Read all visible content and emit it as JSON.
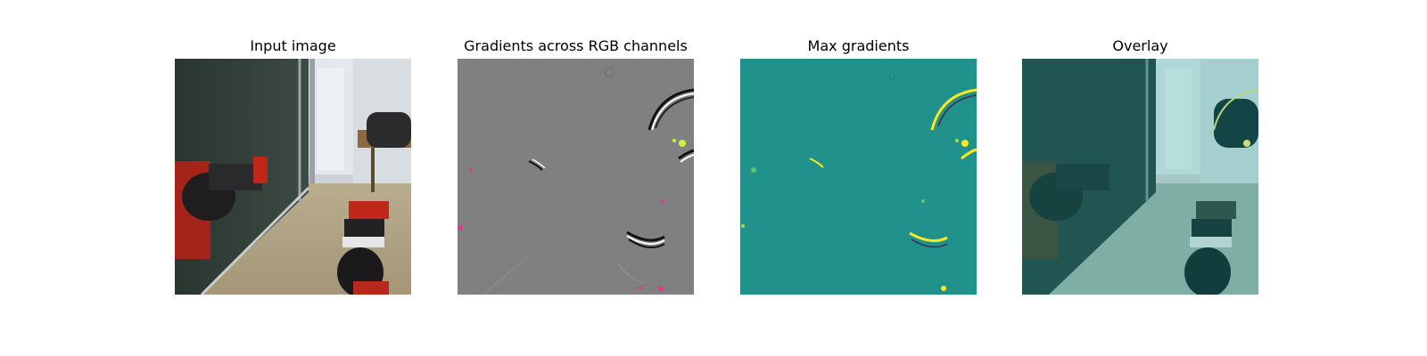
{
  "figure": {
    "panels": [
      {
        "title": "Input image"
      },
      {
        "title": "Gradients across RGB channels"
      },
      {
        "title": "Max gradients"
      },
      {
        "title": "Overlay"
      }
    ],
    "colors": {
      "gradient_gray": "#808080",
      "max_gradient_teal": "#21918c",
      "robot_red": "#c0261a",
      "highlight_yellow": "#fde725"
    }
  }
}
